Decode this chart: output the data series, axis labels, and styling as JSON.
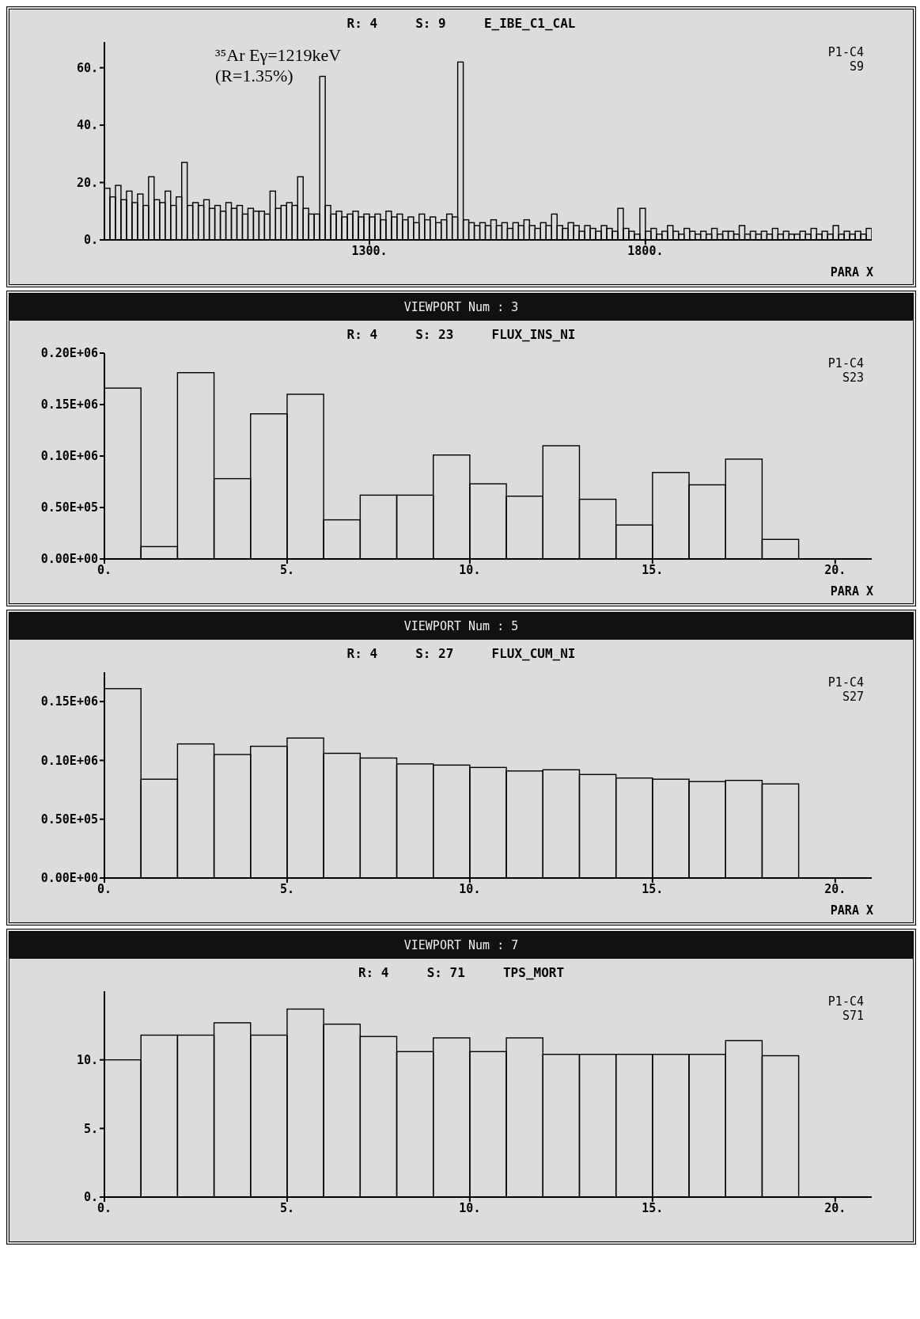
{
  "chart_data": [
    {
      "type": "histogram",
      "title": "R: 4     S: 9     E_IBE_C1_CAL",
      "xlabel": "PARA X",
      "annotations": [
        "³⁵Ar Eγ=1219keV",
        "(R=1.35%)",
        "P1-C4",
        "S9"
      ],
      "color": "#000000",
      "bins": [
        820,
        830,
        840,
        850,
        860,
        870,
        880,
        890,
        900,
        910,
        920,
        930,
        940,
        950,
        960,
        970,
        980,
        990,
        1000,
        1010,
        1020,
        1030,
        1040,
        1050,
        1060,
        1070,
        1080,
        1090,
        1100,
        1110,
        1120,
        1130,
        1140,
        1150,
        1160,
        1170,
        1180,
        1190,
        1200,
        1210,
        1220,
        1230,
        1240,
        1250,
        1260,
        1270,
        1280,
        1290,
        1300,
        1310,
        1320,
        1330,
        1340,
        1350,
        1360,
        1370,
        1380,
        1390,
        1400,
        1410,
        1420,
        1430,
        1440,
        1450,
        1460,
        1470,
        1480,
        1490,
        1500,
        1510,
        1520,
        1530,
        1540,
        1550,
        1560,
        1570,
        1580,
        1590,
        1600,
        1610,
        1620,
        1630,
        1640,
        1650,
        1660,
        1670,
        1680,
        1690,
        1700,
        1710,
        1720,
        1730,
        1740,
        1750,
        1760,
        1770,
        1780,
        1790,
        1800,
        1810,
        1820,
        1830,
        1840,
        1850,
        1860,
        1870,
        1880,
        1890,
        1900,
        1910,
        1920,
        1930,
        1940,
        1950,
        1960,
        1970,
        1980,
        1990,
        2000,
        2010,
        2020,
        2030,
        2040,
        2050,
        2060,
        2070,
        2080,
        2090,
        2100,
        2110,
        2120,
        2130,
        2140,
        2150,
        2160,
        2170,
        2180,
        2190,
        2200,
        2210
      ],
      "values": [
        18,
        15,
        19,
        14,
        17,
        13,
        16,
        12,
        22,
        14,
        13,
        17,
        12,
        15,
        27,
        12,
        13,
        12,
        14,
        11,
        12,
        10,
        13,
        11,
        12,
        9,
        11,
        10,
        10,
        9,
        17,
        11,
        12,
        13,
        12,
        22,
        11,
        9,
        9,
        57,
        12,
        9,
        10,
        8,
        9,
        10,
        8,
        9,
        8,
        9,
        7,
        10,
        8,
        9,
        7,
        8,
        6,
        9,
        7,
        8,
        6,
        7,
        9,
        8,
        62,
        7,
        6,
        5,
        6,
        5,
        7,
        5,
        6,
        4,
        6,
        5,
        7,
        5,
        4,
        6,
        5,
        9,
        5,
        4,
        6,
        5,
        3,
        5,
        4,
        3,
        5,
        4,
        3,
        11,
        4,
        3,
        2,
        11,
        3,
        4,
        2,
        3,
        5,
        3,
        2,
        4,
        3,
        2,
        3,
        2,
        4,
        2,
        3,
        3,
        2,
        5,
        2,
        3,
        2,
        3,
        2,
        4,
        2,
        3,
        2,
        2,
        3,
        2,
        4,
        2,
        3,
        2,
        5,
        2,
        3,
        2,
        3,
        2,
        4
      ],
      "xlim": [
        820,
        2210
      ],
      "xticks": [
        {
          "value": 1300,
          "label": "1300."
        },
        {
          "value": 1800,
          "label": "1800."
        }
      ],
      "ylim": [
        0,
        69
      ],
      "yticks": [
        {
          "value": 0,
          "label": "0."
        },
        {
          "value": 20,
          "label": "20."
        },
        {
          "value": 40,
          "label": "40."
        },
        {
          "value": 60,
          "label": "60."
        }
      ]
    },
    {
      "type": "histogram",
      "subtitle": "VIEWPORT Num : 3",
      "title": "R: 4     S: 23     FLUX_INS_NI",
      "xlabel": "PARA X",
      "annotations": [
        "P1-C4",
        "S23"
      ],
      "color": "#000000",
      "bins": [
        0,
        1,
        2,
        3,
        4,
        5,
        6,
        7,
        8,
        9,
        10,
        11,
        12,
        13,
        14,
        15,
        16,
        17,
        18,
        19
      ],
      "values": [
        166000,
        12000,
        181000,
        78000,
        141000,
        160000,
        38000,
        62000,
        62000,
        101000,
        73000,
        61000,
        110000,
        58000,
        33000,
        84000,
        72000,
        97000,
        19000
      ],
      "xlim": [
        0,
        21
      ],
      "xticks": [
        {
          "value": 0,
          "label": "0."
        },
        {
          "value": 5,
          "label": "5."
        },
        {
          "value": 10,
          "label": "10."
        },
        {
          "value": 15,
          "label": "15."
        },
        {
          "value": 20,
          "label": "20."
        }
      ],
      "ylim": [
        0,
        200000
      ],
      "yticks": [
        {
          "value": 0,
          "label": "0.00E+00"
        },
        {
          "value": 50000,
          "label": "0.50E+05"
        },
        {
          "value": 100000,
          "label": "0.10E+06"
        },
        {
          "value": 150000,
          "label": "0.15E+06"
        },
        {
          "value": 200000,
          "label": "0.20E+06"
        }
      ]
    },
    {
      "type": "histogram",
      "subtitle": "VIEWPORT Num : 5",
      "title": "R: 4     S: 27     FLUX_CUM_NI",
      "xlabel": "PARA X",
      "annotations": [
        "P1-C4",
        "S27"
      ],
      "color": "#000000",
      "bins": [
        0,
        1,
        2,
        3,
        4,
        5,
        6,
        7,
        8,
        9,
        10,
        11,
        12,
        13,
        14,
        15,
        16,
        17,
        18,
        19
      ],
      "values": [
        161000,
        84000,
        114000,
        105000,
        112000,
        119000,
        106000,
        102000,
        97000,
        96000,
        94000,
        91000,
        92000,
        88000,
        85000,
        84000,
        82000,
        83000,
        80000
      ],
      "xlim": [
        0,
        21
      ],
      "xticks": [
        {
          "value": 0,
          "label": "0."
        },
        {
          "value": 5,
          "label": "5."
        },
        {
          "value": 10,
          "label": "10."
        },
        {
          "value": 15,
          "label": "15."
        },
        {
          "value": 20,
          "label": "20."
        }
      ],
      "ylim": [
        0,
        175000
      ],
      "yticks": [
        {
          "value": 0,
          "label": "0.00E+00"
        },
        {
          "value": 50000,
          "label": "0.50E+05"
        },
        {
          "value": 100000,
          "label": "0.10E+06"
        },
        {
          "value": 150000,
          "label": "0.15E+06"
        }
      ]
    },
    {
      "type": "histogram",
      "subtitle": "VIEWPORT Num : 7",
      "title": "R: 4     S: 71     TPS_MORT",
      "annotations": [
        "P1-C4",
        "S71"
      ],
      "color": "#000000",
      "bins": [
        0,
        1,
        2,
        3,
        4,
        5,
        6,
        7,
        8,
        9,
        10,
        11,
        12,
        13,
        14,
        15,
        16,
        17,
        18,
        19
      ],
      "values": [
        10.0,
        11.8,
        11.8,
        12.7,
        11.8,
        13.7,
        12.6,
        11.7,
        10.6,
        11.6,
        10.6,
        11.6,
        10.4,
        10.4,
        10.4,
        10.4,
        10.4,
        11.4,
        10.3
      ],
      "xlim": [
        0,
        21
      ],
      "xticks": [
        {
          "value": 0,
          "label": "0."
        },
        {
          "value": 5,
          "label": "5."
        },
        {
          "value": 10,
          "label": "10."
        },
        {
          "value": 15,
          "label": "15."
        },
        {
          "value": 20,
          "label": "20."
        }
      ],
      "ylim": [
        0,
        15
      ],
      "yticks": [
        {
          "value": 0,
          "label": "0."
        },
        {
          "value": 5,
          "label": "5."
        },
        {
          "value": 10,
          "label": "10."
        }
      ]
    }
  ]
}
